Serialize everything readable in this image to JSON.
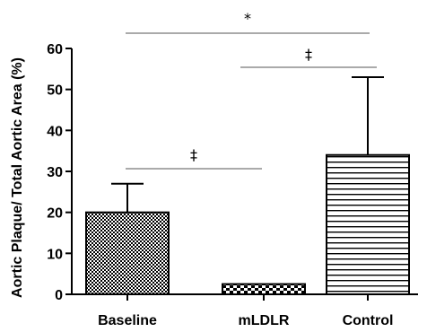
{
  "chart_data": {
    "type": "bar",
    "categories": [
      "Baseline",
      "mLDLR",
      "Control"
    ],
    "values": [
      20,
      2.5,
      34
    ],
    "error_upper": [
      27,
      2.5,
      53
    ],
    "ylabel": "Aortic Plaque/ Total Aortic Area (%)",
    "ylim": [
      0,
      60
    ],
    "yticks": [
      0,
      10,
      20,
      30,
      40,
      50,
      60
    ],
    "patterns": [
      "crosshatch",
      "checker",
      "horizontal-lines"
    ],
    "significance": [
      {
        "from": "Baseline",
        "to": "Control",
        "label": "*"
      },
      {
        "from": "mLDLR",
        "to": "Control",
        "label": "‡"
      },
      {
        "from": "Baseline",
        "to": "mLDLR",
        "label": "‡"
      }
    ],
    "grid": false
  }
}
